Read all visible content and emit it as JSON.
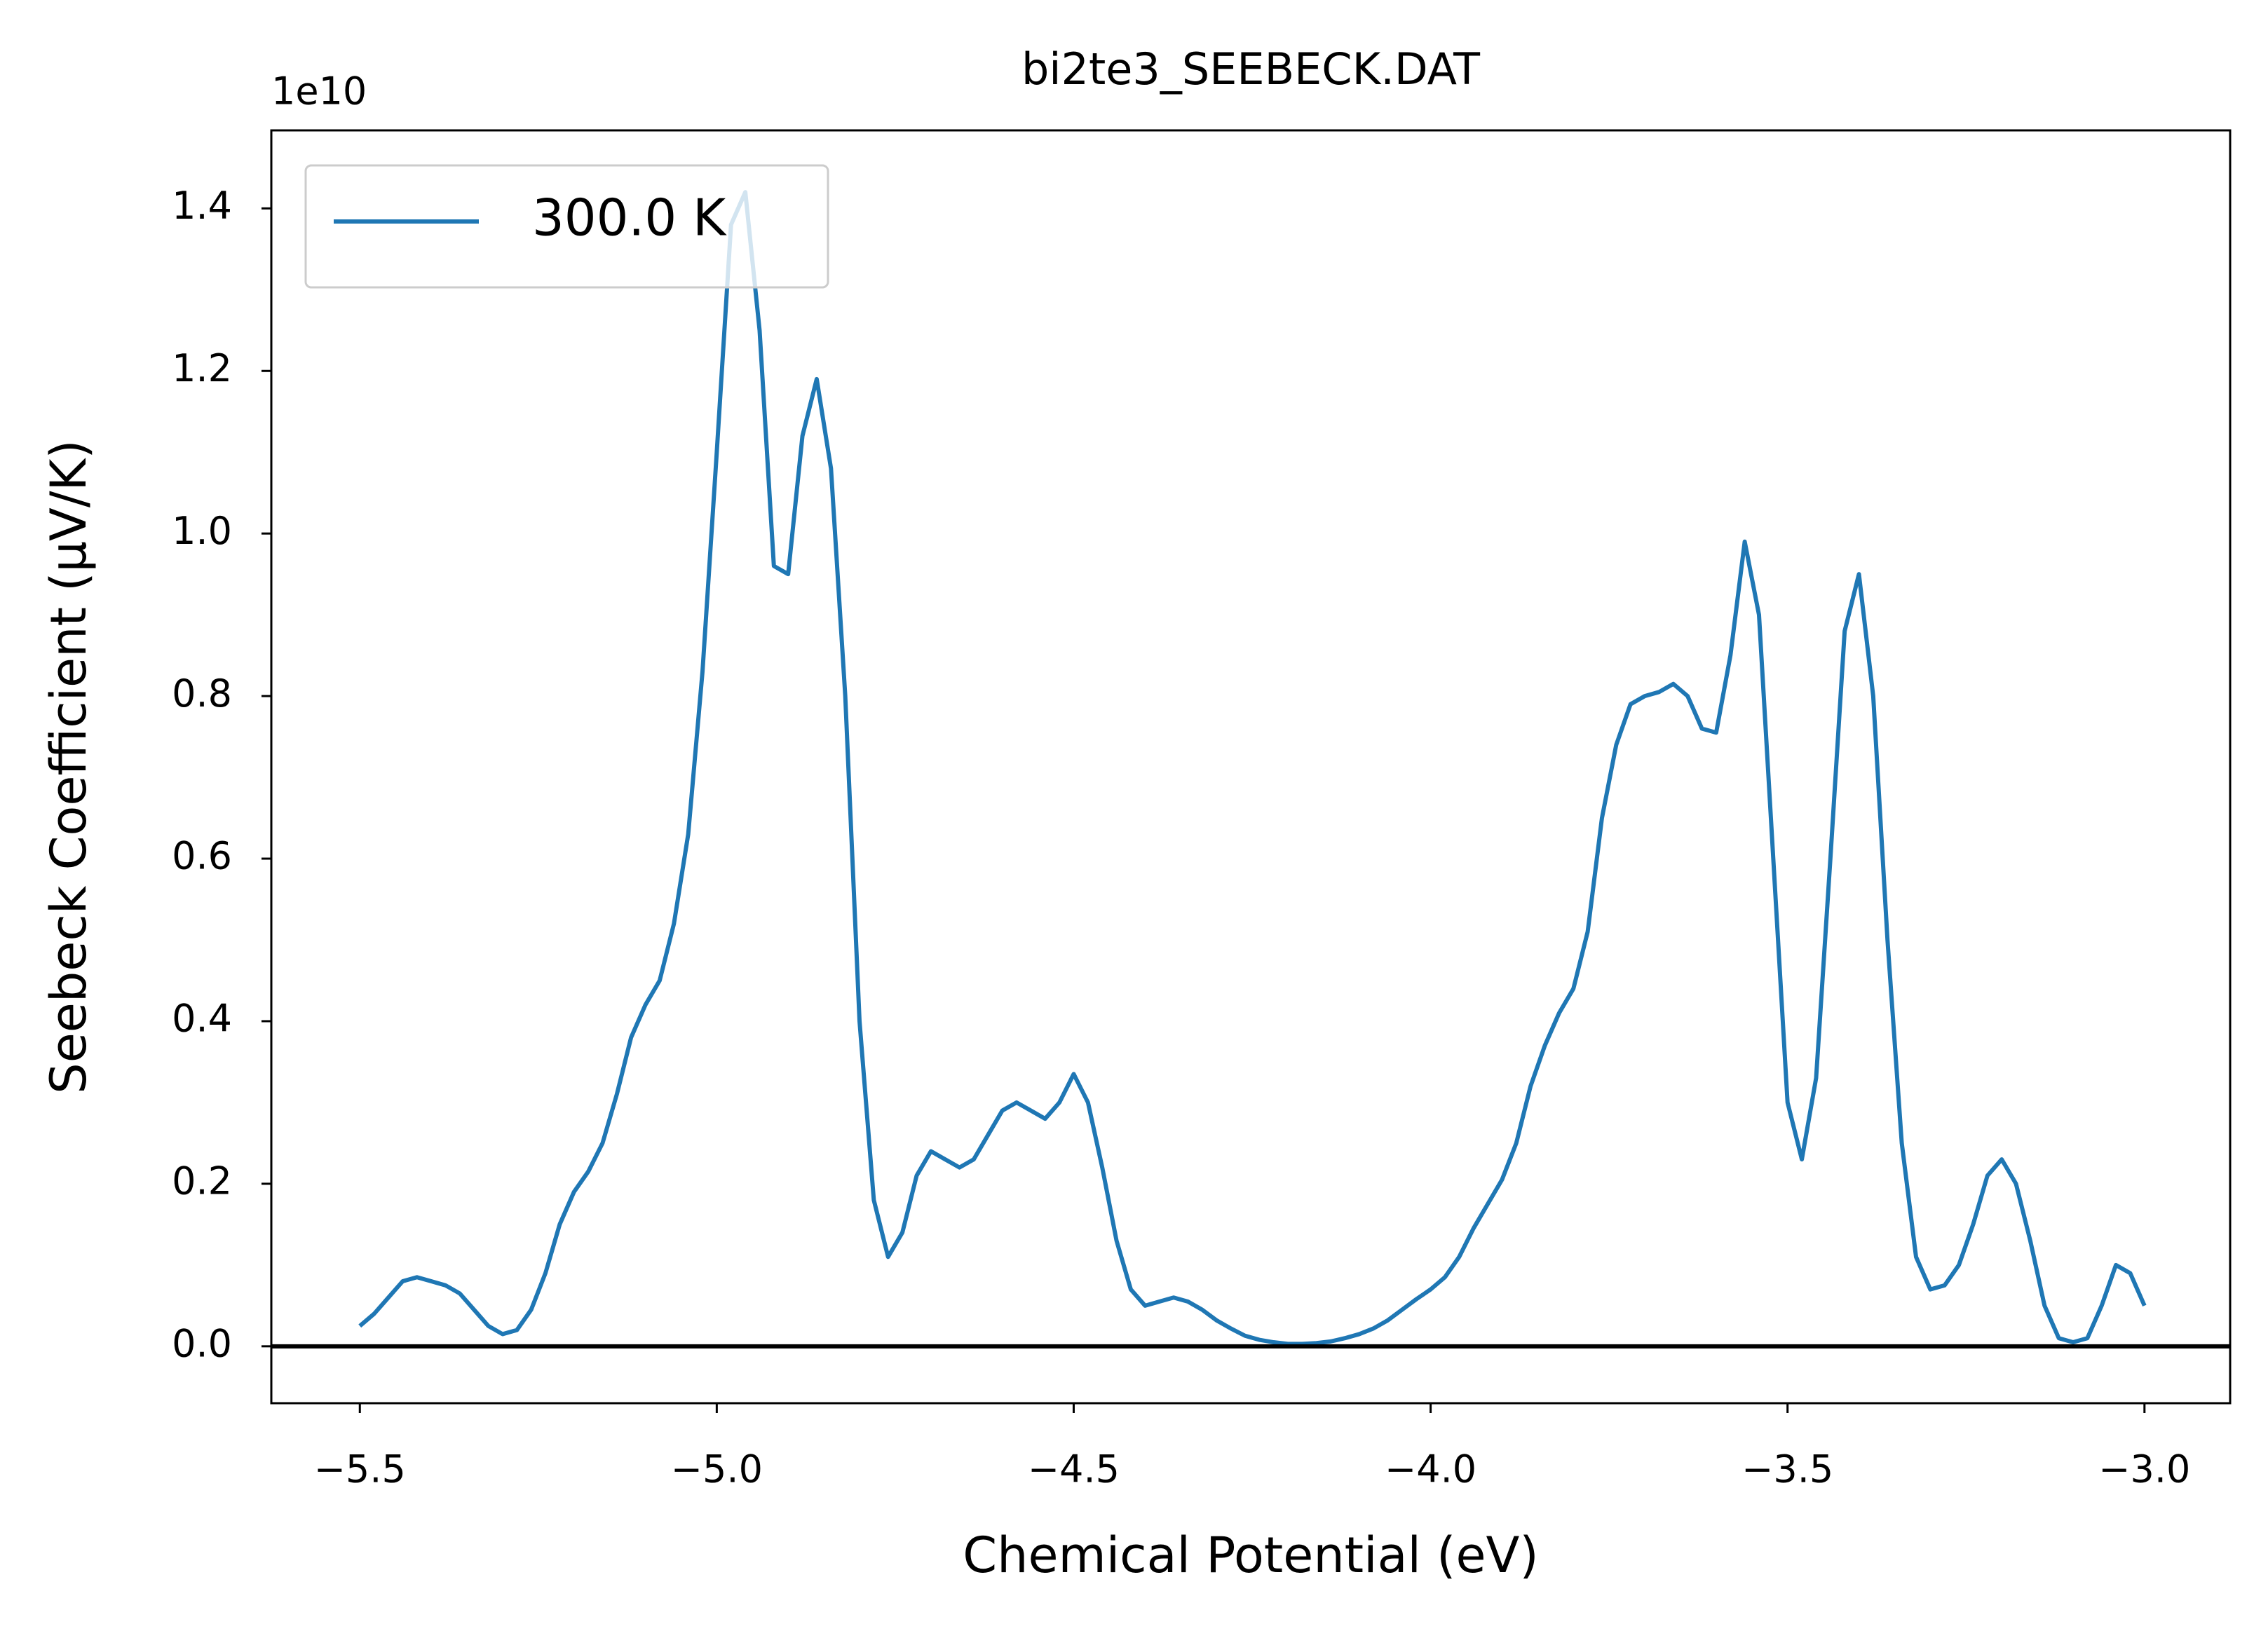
{
  "chart_data": {
    "type": "line",
    "title": "bi2te3_SEEBECK.DAT",
    "xlabel": "Chemical Potential (eV)",
    "ylabel": "Seebeck Coefficient (μV/K)",
    "y_offset_label": "1e10",
    "legend": "upper left",
    "x": [
      -5.5,
      -5.48,
      -5.46,
      -5.44,
      -5.42,
      -5.4,
      -5.38,
      -5.36,
      -5.34,
      -5.32,
      -5.3,
      -5.28,
      -5.26,
      -5.24,
      -5.22,
      -5.2,
      -5.18,
      -5.16,
      -5.14,
      -5.12,
      -5.1,
      -5.08,
      -5.06,
      -5.04,
      -5.02,
      -5.0,
      -4.98,
      -4.96,
      -4.94,
      -4.92,
      -4.9,
      -4.88,
      -4.86,
      -4.84,
      -4.82,
      -4.8,
      -4.78,
      -4.76,
      -4.74,
      -4.72,
      -4.7,
      -4.68,
      -4.66,
      -4.64,
      -4.62,
      -4.6,
      -4.58,
      -4.56,
      -4.54,
      -4.52,
      -4.5,
      -4.48,
      -4.46,
      -4.44,
      -4.42,
      -4.4,
      -4.38,
      -4.36,
      -4.34,
      -4.32,
      -4.3,
      -4.28,
      -4.26,
      -4.24,
      -4.22,
      -4.2,
      -4.18,
      -4.16,
      -4.14,
      -4.12,
      -4.1,
      -4.08,
      -4.06,
      -4.04,
      -4.02,
      -4.0,
      -3.98,
      -3.96,
      -3.94,
      -3.92,
      -3.9,
      -3.88,
      -3.86,
      -3.84,
      -3.82,
      -3.8,
      -3.78,
      -3.76,
      -3.74,
      -3.72,
      -3.7,
      -3.68,
      -3.66,
      -3.64,
      -3.62,
      -3.6,
      -3.58,
      -3.56,
      -3.54,
      -3.52,
      -3.5,
      -3.48,
      -3.46,
      -3.44,
      -3.42,
      -3.4,
      -3.38,
      -3.36,
      -3.34,
      -3.32,
      -3.3,
      -3.28,
      -3.26,
      -3.24,
      -3.22,
      -3.2,
      -3.18,
      -3.16,
      -3.14,
      -3.12,
      -3.1,
      -3.08,
      -3.06,
      -3.04,
      -3.02,
      -3.0
    ],
    "series": [
      {
        "name": "300.0 K",
        "color": "#1f77b4",
        "values": [
          0.025,
          0.04,
          0.06,
          0.08,
          0.085,
          0.08,
          0.075,
          0.065,
          0.045,
          0.025,
          0.015,
          0.02,
          0.045,
          0.09,
          0.15,
          0.19,
          0.215,
          0.25,
          0.31,
          0.38,
          0.42,
          0.45,
          0.52,
          0.63,
          0.83,
          1.1,
          1.38,
          1.42,
          1.25,
          0.96,
          0.95,
          1.12,
          1.19,
          1.08,
          0.8,
          0.4,
          0.18,
          0.11,
          0.14,
          0.21,
          0.24,
          0.23,
          0.22,
          0.23,
          0.26,
          0.29,
          0.3,
          0.29,
          0.28,
          0.3,
          0.335,
          0.3,
          0.22,
          0.13,
          0.07,
          0.05,
          0.055,
          0.06,
          0.055,
          0.045,
          0.032,
          0.022,
          0.013,
          0.008,
          0.005,
          0.003,
          0.003,
          0.004,
          0.006,
          0.01,
          0.015,
          0.022,
          0.032,
          0.045,
          0.058,
          0.07,
          0.085,
          0.11,
          0.145,
          0.175,
          0.205,
          0.25,
          0.32,
          0.37,
          0.41,
          0.44,
          0.51,
          0.65,
          0.74,
          0.79,
          0.8,
          0.805,
          0.815,
          0.8,
          0.76,
          0.755,
          0.85,
          0.99,
          0.9,
          0.6,
          0.3,
          0.23,
          0.33,
          0.6,
          0.88,
          0.95,
          0.8,
          0.5,
          0.25,
          0.11,
          0.07,
          0.075,
          0.1,
          0.15,
          0.21,
          0.23,
          0.2,
          0.13,
          0.05,
          0.01,
          0.005,
          0.01,
          0.05,
          0.1,
          0.09,
          0.05
        ]
      }
    ],
    "reference_line": {
      "y": 0,
      "color": "#000000"
    },
    "xlim": [
      -5.624,
      -2.88
    ],
    "ylim": [
      -0.07,
      1.496
    ],
    "xticks": [
      {
        "value": -5.5,
        "label": "−5.5"
      },
      {
        "value": -5.0,
        "label": "−5.0"
      },
      {
        "value": -4.5,
        "label": "−4.5"
      },
      {
        "value": -4.0,
        "label": "−4.0"
      },
      {
        "value": -3.5,
        "label": "−3.5"
      },
      {
        "value": -3.0,
        "label": "−3.0"
      }
    ],
    "yticks": [
      {
        "value": 0,
        "label": "0.0"
      },
      0.2,
      0.4,
      0.6,
      0.8,
      {
        "value": 1,
        "label": "1.0"
      },
      1.2,
      1.4
    ]
  }
}
